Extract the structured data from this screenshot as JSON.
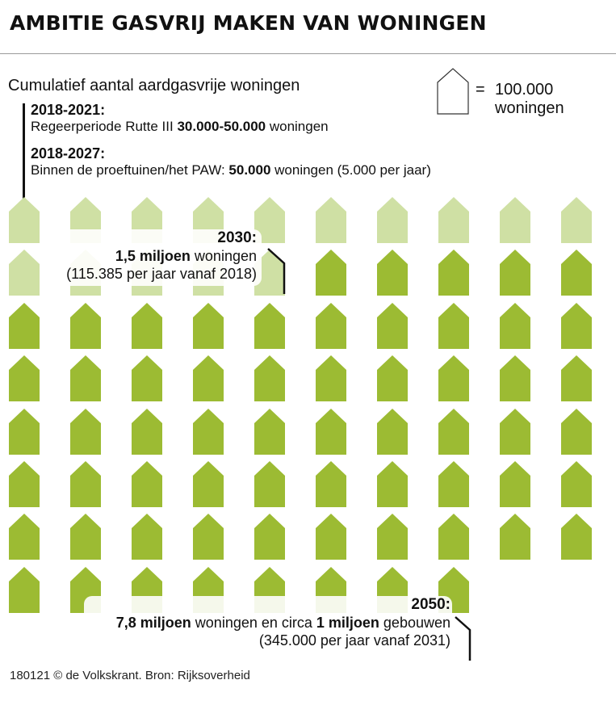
{
  "title": "AMBITIE GASVRIJ MAKEN VAN WONINGEN",
  "subtitle": "Cumulatief aantal aardgasvrije woningen",
  "legend": {
    "equals": "=",
    "line1": "100.000",
    "line2": "woningen",
    "icon": "house-outline-icon"
  },
  "periods": [
    {
      "heading": "2018-2021:",
      "text_before": "Regeerperiode Rutte III ",
      "bold": "30.000-50.000",
      "text_after": " woningen"
    },
    {
      "heading": "2018-2027:",
      "text_before": "Binnen de proeftuinen/het PAW: ",
      "bold": "50.000",
      "text_after": " woningen (5.000 per jaar)"
    }
  ],
  "annotations": {
    "a2030": {
      "year": "2030:",
      "bold": "1,5 miljoen",
      "text": " woningen",
      "note": "(115.385 per jaar vanaf 2018)"
    },
    "a2050": {
      "year": "2050:",
      "bold1": "7,8 miljoen",
      "text1": " woningen en circa ",
      "bold2": "1 miljoen",
      "text2": " gebouwen",
      "note": "(345.000 per jaar vanaf 2031)"
    }
  },
  "footer": "180121 © de Volkskrant. Bron: Rijksoverheid",
  "colors": {
    "light": "#cfe0a4",
    "dark": "#9cbb33",
    "text": "#111111"
  },
  "chart_data": {
    "type": "pictogram",
    "unit_value": 100000,
    "unit_label": "100.000 woningen",
    "columns": 10,
    "series": [
      {
        "name": "2030: 1,5 miljoen woningen",
        "value": 1500000,
        "icons": 15,
        "color": "#cfe0a4"
      },
      {
        "name": "2050: 7,8 miljoen woningen",
        "value": 7800000,
        "icons": 63,
        "color": "#9cbb33"
      }
    ],
    "total_icons": 78
  }
}
